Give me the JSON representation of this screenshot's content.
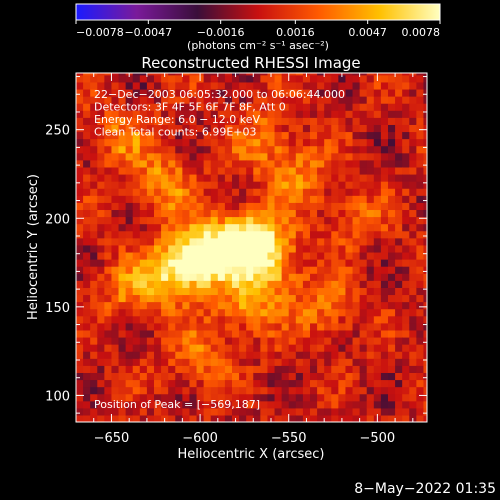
{
  "chart_data": {
    "type": "heatmap",
    "title": "Reconstructed RHESSI Image",
    "xlabel": "Heliocentric X (arcsec)",
    "ylabel": "Heliocentric Y (arcsec)",
    "xlim": [
      -670,
      -472
    ],
    "ylim": [
      85,
      282
    ],
    "xticks": [
      -650,
      -600,
      -550,
      -500
    ],
    "yticks": [
      100,
      150,
      200,
      250
    ],
    "xtick_labels": [
      "−650",
      "−600",
      "−550",
      "−500"
    ],
    "ytick_labels": [
      "100",
      "150",
      "200",
      "250"
    ],
    "colorbar": {
      "range": [
        -0.0078,
        0.0078
      ],
      "ticks": [
        -0.0078,
        -0.0047,
        -0.0016,
        0.0016,
        0.0047,
        0.0078
      ],
      "tick_labels": [
        "−0.0078",
        "−0.0047",
        "−0.0016",
        "0.0016",
        "0.0047",
        "0.0078"
      ],
      "unit_label": "(photons cm⁻² s⁻¹ asec⁻²)",
      "colors": [
        "#1a1aff",
        "#7a1a9a",
        "#3a0e3a",
        "#c81010",
        "#ff5a00",
        "#ffc000",
        "#ffffc0"
      ]
    },
    "annotations": [
      "22−Dec−2003 06:05:32.000 to 06:06:44.000",
      "Detectors: 3F 4F 5F 6F 7F 8F, Att 0",
      "Energy Range: 6.0 − 12.0 keV",
      "Clean     Total counts: 6.99E+03"
    ],
    "peak_label": "Position of Peak = [−569,187]",
    "peak": [
      -569,
      187
    ],
    "sources": [
      {
        "x": -569,
        "y": 187,
        "amp": 0.0078
      },
      {
        "x": -590,
        "y": 182,
        "amp": 0.006
      },
      {
        "x": -605,
        "y": 178,
        "amp": 0.0055
      },
      {
        "x": -615,
        "y": 168,
        "amp": 0.0042
      },
      {
        "x": -560,
        "y": 170,
        "amp": 0.004
      },
      {
        "x": -575,
        "y": 150,
        "amp": 0.0036
      },
      {
        "x": -620,
        "y": 220,
        "amp": 0.0038
      },
      {
        "x": -545,
        "y": 225,
        "amp": 0.0034
      },
      {
        "x": -530,
        "y": 150,
        "amp": 0.0032
      },
      {
        "x": -600,
        "y": 120,
        "amp": 0.003
      },
      {
        "x": -640,
        "y": 160,
        "amp": 0.0032
      },
      {
        "x": -565,
        "y": 245,
        "amp": 0.003
      },
      {
        "x": -515,
        "y": 200,
        "amp": 0.0026
      },
      {
        "x": -645,
        "y": 245,
        "amp": 0.0028
      }
    ],
    "grid": false
  },
  "footer_timestamp": "8−May−2022 01:35"
}
